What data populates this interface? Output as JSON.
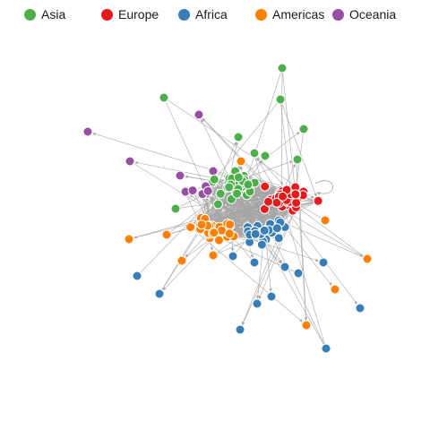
{
  "legend": [
    {
      "name": "Asia",
      "color": "#4daf4a"
    },
    {
      "name": "Europe",
      "color": "#e41a1c"
    },
    {
      "name": "Africa",
      "color": "#377eb8"
    },
    {
      "name": "Americas",
      "color": "#ff7f00"
    },
    {
      "name": "Oceania",
      "color": "#984ea3"
    }
  ],
  "colors": {
    "edge": "#a6a6a6",
    "node_stroke": "#ffffff"
  }
}
